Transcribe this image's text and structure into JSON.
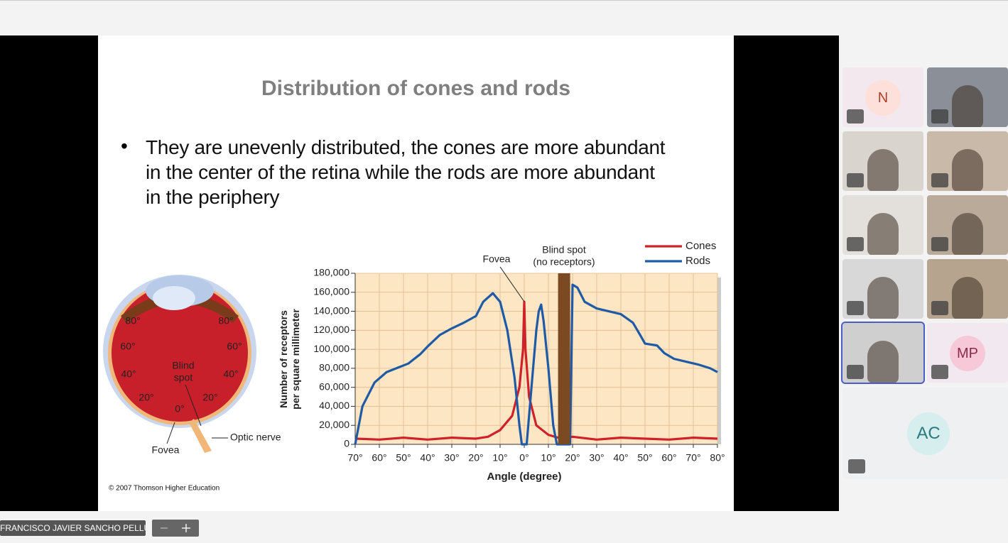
{
  "slide": {
    "title": "Distribution of cones and rods",
    "bullet_lines": [
      "They are unevenly distributed, the cones are more abundant",
      "in the center of the retina while the rods are more abundant",
      "in the periphery"
    ],
    "eye_labels": {
      "left_80": "80°",
      "right_80": "80°",
      "left_60": "60°",
      "right_60": "60°",
      "left_40": "40°",
      "right_40": "40°",
      "left_20": "20°",
      "right_20": "20°",
      "zero": "0°",
      "blind_spot": [
        "Blind",
        "spot"
      ],
      "fovea": "Fovea",
      "optic_nerve": "Optic nerve"
    },
    "copyright": "© 2007 Thomson Higher Education"
  },
  "chart_data": {
    "type": "line",
    "ylabel": [
      "Number of receptors",
      "per square millimeter"
    ],
    "xlabel": "Angle (degree)",
    "annotations": {
      "fovea": "Fovea",
      "blind_spot": [
        "Blind spot",
        "(no receptors)"
      ]
    },
    "blind_spot_range": [
      14,
      19
    ],
    "xlim": [
      -70,
      80
    ],
    "xticks": [
      {
        "value": -70,
        "label": "70°"
      },
      {
        "value": -60,
        "label": "60°"
      },
      {
        "value": -50,
        "label": "50°"
      },
      {
        "value": -40,
        "label": "40°"
      },
      {
        "value": -30,
        "label": "30°"
      },
      {
        "value": -20,
        "label": "20°"
      },
      {
        "value": -10,
        "label": "10°"
      },
      {
        "value": 0,
        "label": "0°"
      },
      {
        "value": 10,
        "label": "10°"
      },
      {
        "value": 20,
        "label": "20°"
      },
      {
        "value": 30,
        "label": "30°"
      },
      {
        "value": 40,
        "label": "40°"
      },
      {
        "value": 50,
        "label": "50°"
      },
      {
        "value": 60,
        "label": "60°"
      },
      {
        "value": 70,
        "label": "70°"
      },
      {
        "value": 80,
        "label": "80°"
      }
    ],
    "ylim": [
      0,
      180000
    ],
    "yticks": [
      0,
      {
        "value": 20000,
        "label": "20,000"
      },
      {
        "value": 40000,
        "label": "40,000"
      },
      {
        "value": 60000,
        "label": "60,000"
      },
      {
        "value": 80000,
        "label": "80,000"
      },
      {
        "value": 100000,
        "label": "100,000"
      },
      {
        "value": 120000,
        "label": "120,000"
      },
      {
        "value": 140000,
        "label": "140,000"
      },
      {
        "value": 160000,
        "label": "160,000"
      },
      {
        "value": 180000,
        "label": "180,000"
      }
    ],
    "grid": true,
    "series": [
      {
        "name": "Cones",
        "color": "#d0202a",
        "x": [
          -70,
          -60,
          -50,
          -40,
          -30,
          -20,
          -15,
          -10,
          -5,
          -2,
          -0.5,
          0,
          0.5,
          2,
          5,
          10,
          14,
          20,
          30,
          40,
          50,
          60,
          70,
          80
        ],
        "values": [
          6000,
          5000,
          7000,
          5000,
          7000,
          6000,
          8000,
          15000,
          30000,
          60000,
          100000,
          150000,
          100000,
          50000,
          20000,
          10000,
          7000,
          8000,
          5000,
          7000,
          6000,
          5000,
          7000,
          6000
        ]
      },
      {
        "name": "Rods",
        "color": "#1f5aa6",
        "x": [
          -70,
          -67,
          -62,
          -57,
          -53,
          -48,
          -43,
          -40,
          -35,
          -30,
          -25,
          -20,
          -17,
          -13,
          -10,
          -7,
          -4,
          -2,
          -1,
          1,
          3,
          5,
          6,
          7,
          8,
          10,
          12,
          13.5,
          19,
          20,
          22,
          25,
          30,
          35,
          40,
          45,
          48,
          50,
          55,
          58,
          62,
          67,
          72,
          77,
          80
        ],
        "values": [
          0,
          40000,
          65000,
          76000,
          80000,
          85000,
          95000,
          103000,
          115000,
          122000,
          128000,
          135000,
          150000,
          159000,
          150000,
          120000,
          70000,
          20000,
          0,
          0,
          60000,
          120000,
          140000,
          147000,
          130000,
          80000,
          20000,
          0,
          0,
          168000,
          165000,
          150000,
          143000,
          140000,
          137000,
          128000,
          115000,
          106000,
          104000,
          96000,
          90000,
          87000,
          84000,
          80000,
          76000
        ]
      }
    ]
  },
  "call": {
    "participant_initials": [
      "N",
      "MP",
      "AC"
    ],
    "presenter_label": "FRANCISCO JAVIER SANCHO PELLUZ"
  }
}
